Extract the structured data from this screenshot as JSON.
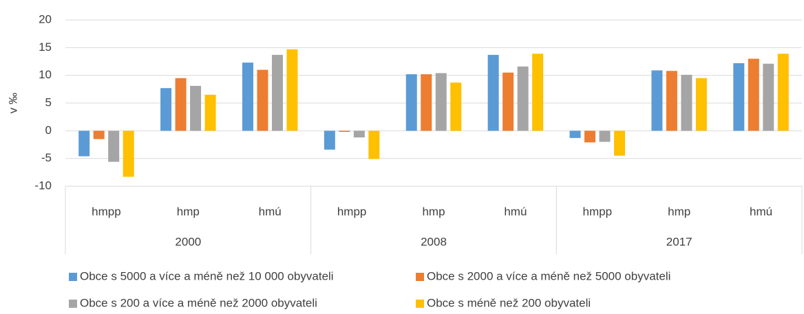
{
  "chart_data": {
    "type": "bar",
    "y_label": "v ‰",
    "categories": [
      "hmpp",
      "hmp",
      "hmú",
      "hmpp",
      "hmp",
      "hmú",
      "hmpp",
      "hmp",
      "hmú"
    ],
    "category_groups": [
      "2000",
      "2008",
      "2017"
    ],
    "series": [
      {
        "name": "Obce s 5000 a více a méně než 10 000 obyvateli",
        "color": "#5b9bd5",
        "values": [
          -4.6,
          7.7,
          12.3,
          -3.4,
          10.2,
          13.7,
          -1.3,
          10.9,
          12.2
        ]
      },
      {
        "name": "Obce s 2000 a více a méně než 5000 obyvateli",
        "color": "#ed7d31",
        "values": [
          -1.5,
          9.5,
          11.0,
          -0.2,
          10.2,
          10.5,
          -2.1,
          10.8,
          13.0
        ]
      },
      {
        "name": "Obce s 200 a více a méně než 2000 obyvateli",
        "color": "#a5a5a5",
        "values": [
          -5.6,
          8.1,
          13.7,
          -1.2,
          10.4,
          11.6,
          -2.0,
          10.1,
          12.1
        ]
      },
      {
        "name": "Obce s méně než 200 obyvateli",
        "color": "#ffc000",
        "values": [
          -8.3,
          6.5,
          14.7,
          -5.1,
          8.7,
          13.9,
          -4.5,
          9.5,
          13.9
        ]
      }
    ],
    "ylim": [
      -10,
      20
    ],
    "yticks": [
      -10,
      -5,
      0,
      5,
      10,
      15,
      20
    ],
    "grid": true
  }
}
